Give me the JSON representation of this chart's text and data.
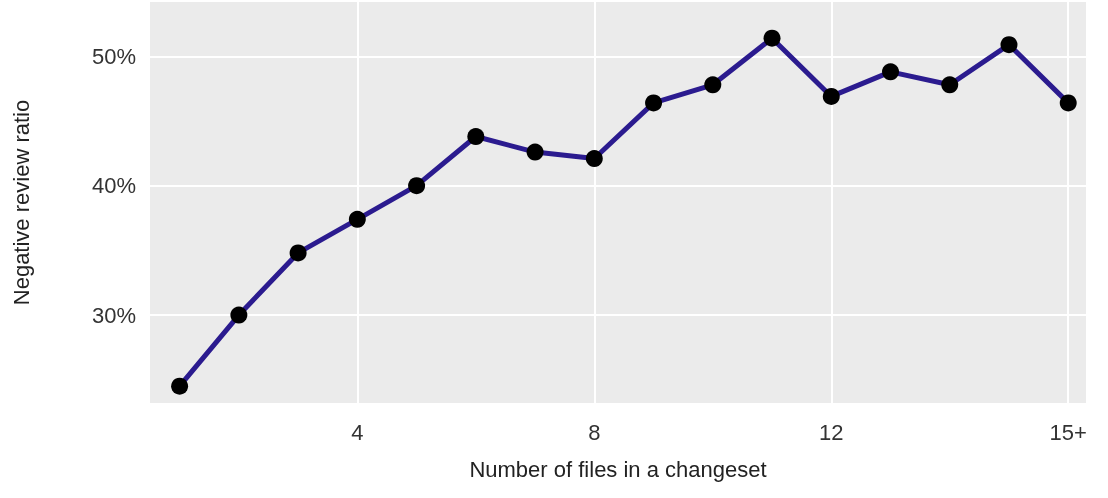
{
  "chart_data": {
    "type": "line",
    "xlabel": "Number of files in a changeset",
    "ylabel": "Negative review ratio",
    "x": [
      1,
      2,
      3,
      4,
      5,
      6,
      7,
      8,
      9,
      10,
      11,
      12,
      13,
      14,
      15,
      16
    ],
    "series": [
      {
        "color": "#2b1b8f",
        "values": [
          24.5,
          30.0,
          34.8,
          37.4,
          40.0,
          43.8,
          42.6,
          42.1,
          46.4,
          47.8,
          51.4,
          46.9,
          48.8,
          47.8,
          50.9,
          46.4
        ]
      }
    ],
    "xlim": [
      0.5,
      16.3
    ],
    "xticks": [
      4,
      8,
      12,
      {
        "value": 16,
        "label": "15+"
      }
    ],
    "ylim": [
      23.2,
      54.2
    ],
    "yticks": [
      {
        "value": 30,
        "label": "30%"
      },
      {
        "value": 40,
        "label": "40%"
      },
      {
        "value": 50,
        "label": "50%"
      }
    ],
    "grid": true,
    "marker": "circle",
    "line_style": "solid"
  }
}
